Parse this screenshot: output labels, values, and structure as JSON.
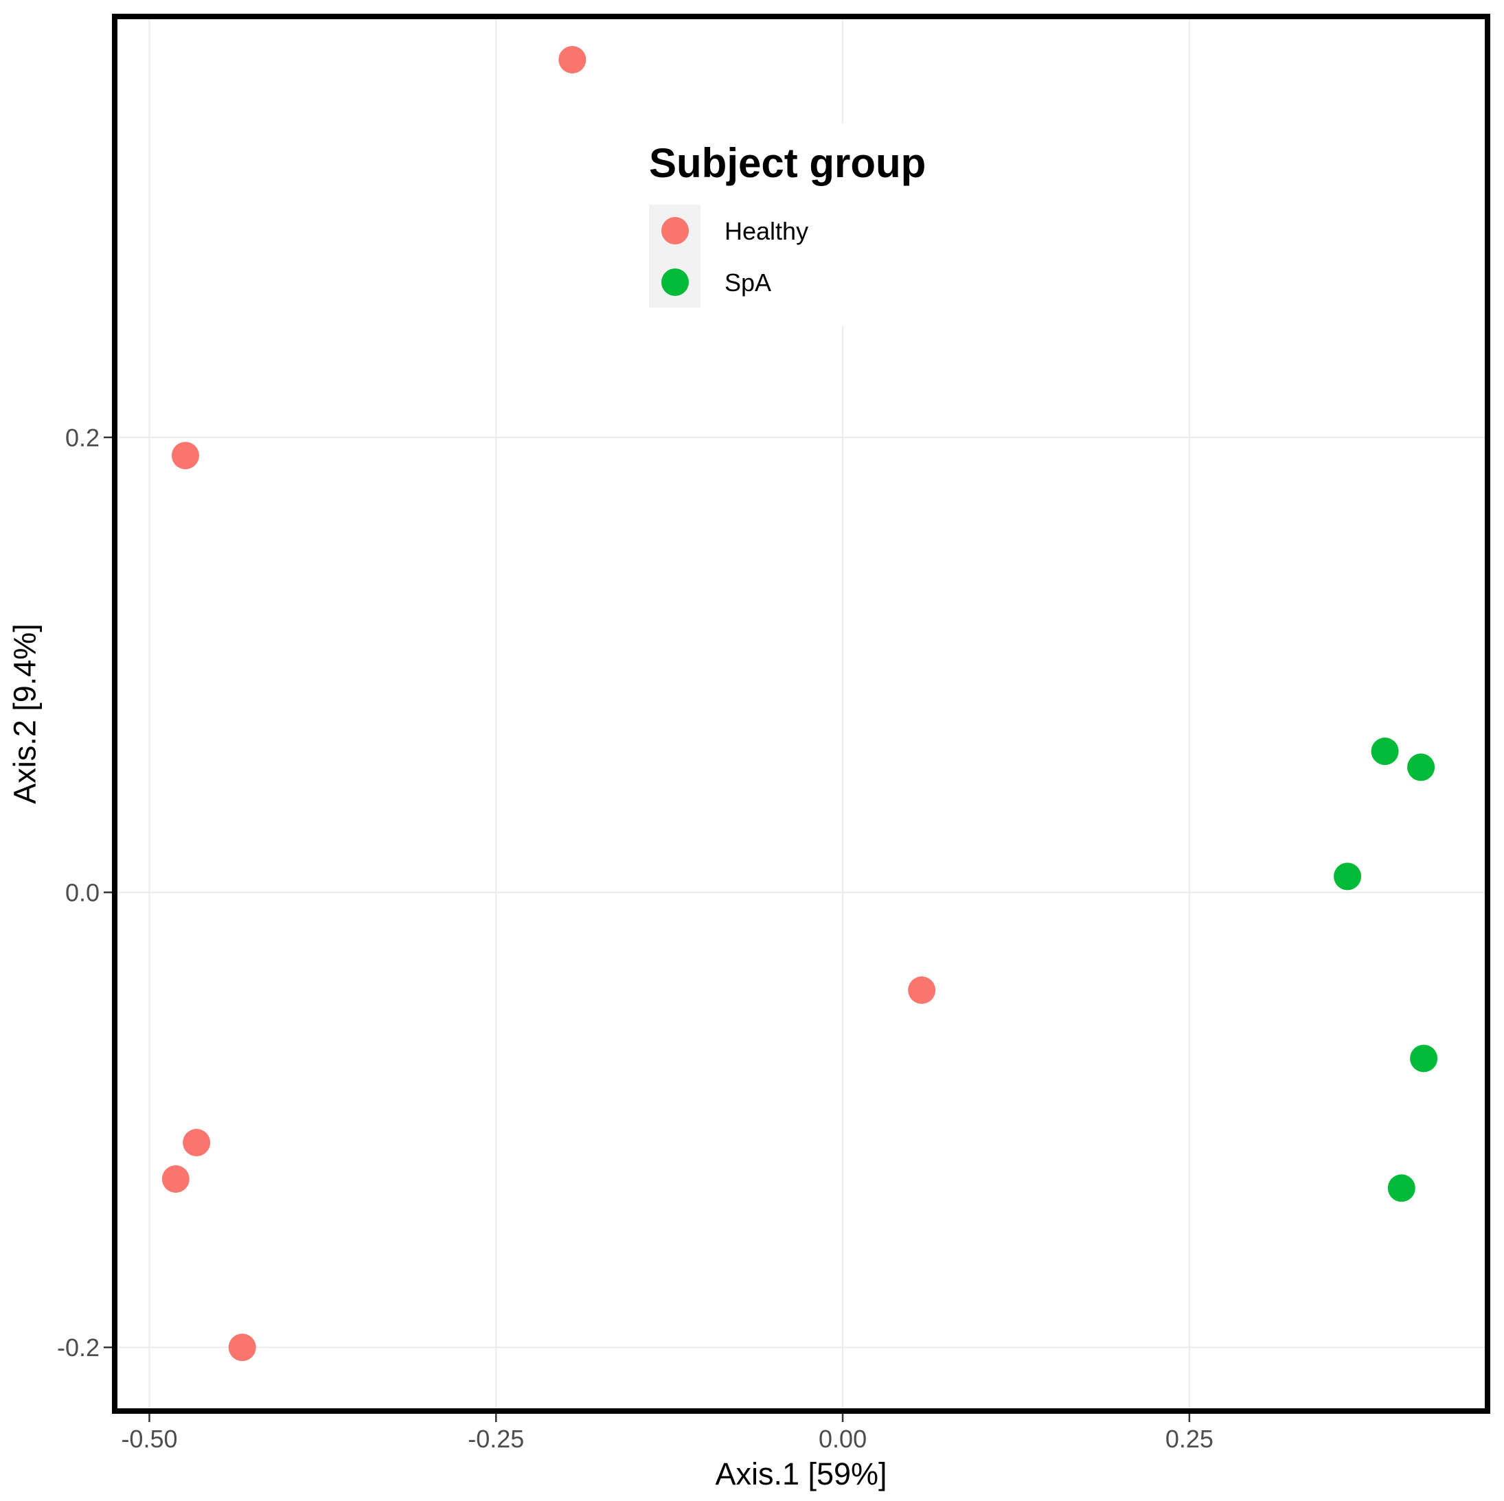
{
  "chart_data": {
    "type": "scatter",
    "title": "",
    "xlabel": "Axis.1   [59%]",
    "ylabel": "Axis.2   [9.4%]",
    "xlim": [
      -0.525,
      0.465
    ],
    "ylim": [
      -0.228,
      0.385
    ],
    "x_ticks": [
      {
        "value": -0.5,
        "label": "-0.50"
      },
      {
        "value": -0.25,
        "label": "-0.25"
      },
      {
        "value": 0.0,
        "label": "0.00"
      },
      {
        "value": 0.25,
        "label": "0.25"
      }
    ],
    "y_ticks": [
      {
        "value": 0.2,
        "label": "0.2"
      },
      {
        "value": 0.0,
        "label": "0.0"
      },
      {
        "value": -0.2,
        "label": "-0.2"
      }
    ],
    "grid": true,
    "legend": {
      "title": "Subject group",
      "placement": "inside-top-center",
      "entries": [
        "Healthy",
        "SpA"
      ]
    },
    "series": [
      {
        "name": "Healthy",
        "color": "#F8766D",
        "points": [
          {
            "x": -0.195,
            "y": 0.366
          },
          {
            "x": -0.474,
            "y": 0.192
          },
          {
            "x": 0.057,
            "y": -0.043
          },
          {
            "x": -0.466,
            "y": -0.11
          },
          {
            "x": -0.481,
            "y": -0.126
          },
          {
            "x": -0.433,
            "y": -0.2
          }
        ]
      },
      {
        "name": "SpA",
        "color": "#00BA38",
        "points": [
          {
            "x": 0.391,
            "y": 0.062
          },
          {
            "x": 0.417,
            "y": 0.055
          },
          {
            "x": 0.364,
            "y": 0.007
          },
          {
            "x": 0.419,
            "y": -0.073
          },
          {
            "x": 0.403,
            "y": -0.13
          }
        ]
      }
    ]
  }
}
